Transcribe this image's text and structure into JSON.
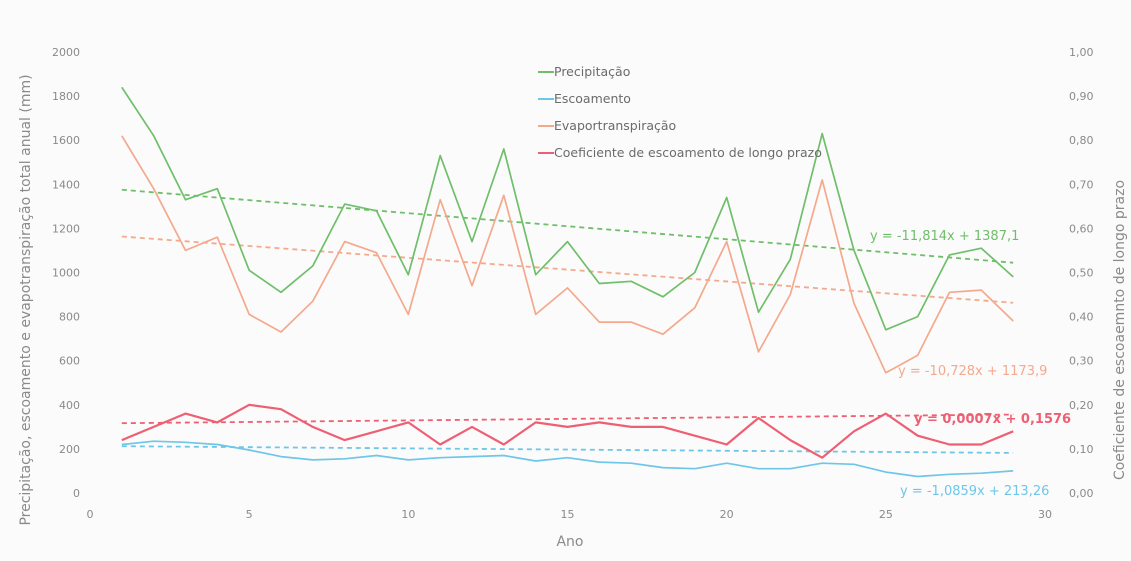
{
  "chart_data": {
    "type": "line",
    "xlabel": "Ano",
    "ylabel": "Precipitação, escoamento e evapotranspiração total anual (mm)",
    "y2label": "Coeficiente de escoaemnto de longo prazo",
    "xlim": [
      0,
      30
    ],
    "ylim": [
      0,
      2000
    ],
    "y2lim": [
      0,
      1
    ],
    "x_ticks": [
      "0",
      "5",
      "10",
      "15",
      "20",
      "25",
      "30"
    ],
    "y_ticks": [
      "0",
      "200",
      "400",
      "600",
      "800",
      "1000",
      "1200",
      "1400",
      "1600",
      "1800",
      "2000"
    ],
    "y2_ticks": [
      "0,00",
      "0,10",
      "0,20",
      "0,30",
      "0,40",
      "0,50",
      "0,60",
      "0,70",
      "0,80",
      "0,90",
      "1,00"
    ],
    "legend_position": "top-center",
    "x": [
      1,
      2,
      3,
      4,
      5,
      6,
      7,
      8,
      9,
      10,
      11,
      12,
      13,
      14,
      15,
      16,
      17,
      18,
      19,
      20,
      21,
      22,
      23,
      24,
      25,
      26,
      27,
      28,
      29
    ],
    "series": [
      {
        "name": "Precipitação",
        "color": "#6fbf6a",
        "axis": "left",
        "values": [
          1840,
          1620,
          1330,
          1380,
          1010,
          910,
          1030,
          1310,
          1280,
          990,
          1530,
          1140,
          1560,
          990,
          1140,
          950,
          960,
          890,
          1000,
          1340,
          820,
          1060,
          1630,
          1100,
          740,
          800,
          1080,
          1110,
          980
        ],
        "trend": {
          "slope": -11.814,
          "intercept": 1387.1,
          "label": "y = -11,814x + 1387,1"
        }
      },
      {
        "name": "Escoamento",
        "color": "#6ec6e8",
        "axis": "left",
        "values": [
          220,
          235,
          230,
          220,
          195,
          165,
          150,
          155,
          170,
          150,
          160,
          165,
          170,
          145,
          160,
          140,
          135,
          115,
          110,
          135,
          110,
          110,
          135,
          130,
          95,
          75,
          85,
          90,
          100
        ],
        "trend": {
          "slope": -1.0859,
          "intercept": 213.26,
          "label": "y = -1,0859x + 213,26"
        }
      },
      {
        "name": "Evaportranspiração",
        "color": "#f4a98c",
        "axis": "left",
        "values": [
          1620,
          1380,
          1100,
          1160,
          810,
          730,
          870,
          1140,
          1090,
          810,
          1330,
          940,
          1350,
          810,
          930,
          775,
          775,
          720,
          840,
          1140,
          640,
          900,
          1420,
          860,
          545,
          625,
          910,
          920,
          780
        ],
        "trend": {
          "slope": -10.728,
          "intercept": 1173.9,
          "label": "y = -10,728x + 1173,9"
        }
      },
      {
        "name": "Coeficiente de escoamento de longo prazo",
        "color": "#ee5f73",
        "axis": "right",
        "values": [
          0.12,
          0.15,
          0.18,
          0.16,
          0.2,
          0.19,
          0.15,
          0.12,
          0.14,
          0.16,
          0.11,
          0.15,
          0.11,
          0.16,
          0.15,
          0.16,
          0.15,
          0.15,
          0.13,
          0.11,
          0.17,
          0.12,
          0.08,
          0.14,
          0.18,
          0.13,
          0.11,
          0.11,
          0.14
        ],
        "trend": {
          "slope": 0.0007,
          "intercept": 0.1576,
          "label": "y = 0,0007x + 0,1576"
        }
      }
    ]
  }
}
